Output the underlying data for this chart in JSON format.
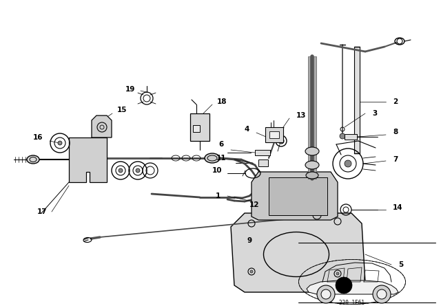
{
  "bg_color": "#ffffff",
  "fig_width": 6.4,
  "fig_height": 4.48,
  "dpi": 100,
  "line_color": "#000000",
  "text_color": "#000000",
  "label_fontsize": 7.5,
  "label_fontweight": "bold",
  "car_code": "220 1E61"
}
